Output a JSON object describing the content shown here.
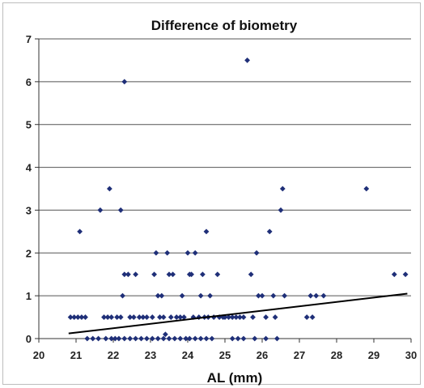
{
  "chart_data": {
    "type": "scatter",
    "title": "Difference of biometry",
    "xlabel": "AL (mm)",
    "ylabel": "",
    "xlim": [
      20,
      30
    ],
    "ylim": [
      0,
      7
    ],
    "xticks": [
      "20",
      "21",
      "22",
      "23",
      "24",
      "25",
      "26",
      "27",
      "28",
      "29",
      "30"
    ],
    "yticks": [
      "0",
      "1",
      "2",
      "3",
      "4",
      "5",
      "6",
      "7"
    ],
    "grid": "horizontal",
    "legend": "none",
    "marker_color": "#1f2f78",
    "trendline_color": "#000000",
    "trendline": {
      "x": [
        20.8,
        29.9
      ],
      "y": [
        0.12,
        1.05
      ]
    },
    "series": [
      {
        "points": [
          [
            20.85,
            0.5
          ],
          [
            20.95,
            0.5
          ],
          [
            21.05,
            0.5
          ],
          [
            21.15,
            0.5
          ],
          [
            21.25,
            0.5
          ],
          [
            21.1,
            2.5
          ],
          [
            21.3,
            0.0
          ],
          [
            21.45,
            0.0
          ],
          [
            21.6,
            0.0
          ],
          [
            21.65,
            3.0
          ],
          [
            21.75,
            0.5
          ],
          [
            21.85,
            0.5
          ],
          [
            21.9,
            3.5
          ],
          [
            21.95,
            0.5
          ],
          [
            21.8,
            0.0
          ],
          [
            21.95,
            0.0
          ],
          [
            22.05,
            0.0
          ],
          [
            22.1,
            0.5
          ],
          [
            22.2,
            0.5
          ],
          [
            22.2,
            3.0
          ],
          [
            22.3,
            6.0
          ],
          [
            22.25,
            1.0
          ],
          [
            22.3,
            1.5
          ],
          [
            22.4,
            1.5
          ],
          [
            22.45,
            0.5
          ],
          [
            22.55,
            0.5
          ],
          [
            22.6,
            1.5
          ],
          [
            22.7,
            0.5
          ],
          [
            22.8,
            0.5
          ],
          [
            22.9,
            0.5
          ],
          [
            22.15,
            0.0
          ],
          [
            22.3,
            0.0
          ],
          [
            22.45,
            0.0
          ],
          [
            22.6,
            0.0
          ],
          [
            22.75,
            0.0
          ],
          [
            22.9,
            0.0
          ],
          [
            23.05,
            0.5
          ],
          [
            23.1,
            1.5
          ],
          [
            23.15,
            2.0
          ],
          [
            23.2,
            1.0
          ],
          [
            23.25,
            0.5
          ],
          [
            23.3,
            1.0
          ],
          [
            23.35,
            0.5
          ],
          [
            23.4,
            0.1
          ],
          [
            23.45,
            2.0
          ],
          [
            23.5,
            1.5
          ],
          [
            23.55,
            0.5
          ],
          [
            23.6,
            1.5
          ],
          [
            23.7,
            0.5
          ],
          [
            23.8,
            0.5
          ],
          [
            23.85,
            1.0
          ],
          [
            23.9,
            0.5
          ],
          [
            23.05,
            0.0
          ],
          [
            23.2,
            0.0
          ],
          [
            23.35,
            0.0
          ],
          [
            23.5,
            0.0
          ],
          [
            23.65,
            0.0
          ],
          [
            23.8,
            0.0
          ],
          [
            23.95,
            0.0
          ],
          [
            24.0,
            2.0
          ],
          [
            24.05,
            1.5
          ],
          [
            24.1,
            1.5
          ],
          [
            24.15,
            0.5
          ],
          [
            24.2,
            2.0
          ],
          [
            24.3,
            0.5
          ],
          [
            24.35,
            1.0
          ],
          [
            24.4,
            1.5
          ],
          [
            24.45,
            0.5
          ],
          [
            24.5,
            2.5
          ],
          [
            24.55,
            0.5
          ],
          [
            24.6,
            1.0
          ],
          [
            24.7,
            0.5
          ],
          [
            24.8,
            1.5
          ],
          [
            24.85,
            0.5
          ],
          [
            24.95,
            0.5
          ],
          [
            24.05,
            0.0
          ],
          [
            24.2,
            0.0
          ],
          [
            24.35,
            0.0
          ],
          [
            24.5,
            0.0
          ],
          [
            24.65,
            0.0
          ],
          [
            25.0,
            0.5
          ],
          [
            25.1,
            0.5
          ],
          [
            25.2,
            0.5
          ],
          [
            25.3,
            0.5
          ],
          [
            25.4,
            0.5
          ],
          [
            25.5,
            0.5
          ],
          [
            25.6,
            6.5
          ],
          [
            25.7,
            1.5
          ],
          [
            25.75,
            0.5
          ],
          [
            25.85,
            2.0
          ],
          [
            25.9,
            1.0
          ],
          [
            25.2,
            0.0
          ],
          [
            25.35,
            0.0
          ],
          [
            25.5,
            0.0
          ],
          [
            25.8,
            0.0
          ],
          [
            26.0,
            1.0
          ],
          [
            26.1,
            0.5
          ],
          [
            26.2,
            2.5
          ],
          [
            26.3,
            1.0
          ],
          [
            26.35,
            0.5
          ],
          [
            26.4,
            0.0
          ],
          [
            26.5,
            3.0
          ],
          [
            26.55,
            3.5
          ],
          [
            26.6,
            1.0
          ],
          [
            26.1,
            0.0
          ],
          [
            27.2,
            0.5
          ],
          [
            27.3,
            1.0
          ],
          [
            27.35,
            0.5
          ],
          [
            27.45,
            1.0
          ],
          [
            27.65,
            1.0
          ],
          [
            28.8,
            3.5
          ],
          [
            29.55,
            1.5
          ],
          [
            29.85,
            1.5
          ]
        ]
      }
    ]
  }
}
